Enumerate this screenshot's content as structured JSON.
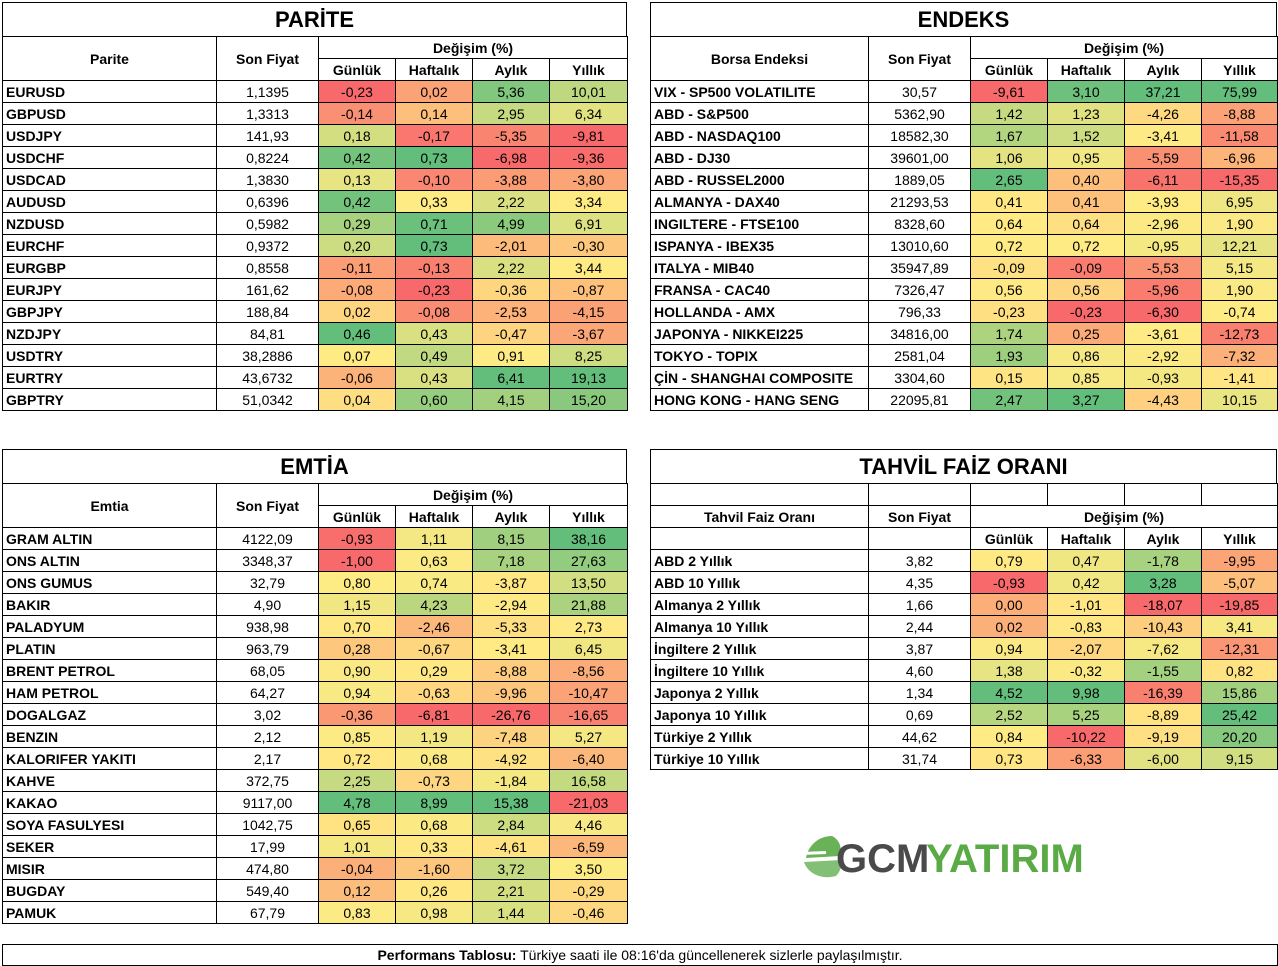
{
  "parite": {
    "title": "PARİTE",
    "head": {
      "name": "Parite",
      "price": "Son Fiyat",
      "change": "Değişim (%)",
      "d": "Günlük",
      "w": "Haftalık",
      "m": "Aylık",
      "y": "Yıllık"
    },
    "rows": [
      {
        "name": "EURUSD",
        "price": "1,1395",
        "d": "-0,23",
        "w": "0,02",
        "m": "5,36",
        "y": "10,01"
      },
      {
        "name": "GBPUSD",
        "price": "1,3313",
        "d": "-0,14",
        "w": "0,14",
        "m": "2,95",
        "y": "6,34"
      },
      {
        "name": "USDJPY",
        "price": "141,93",
        "d": "0,18",
        "w": "-0,17",
        "m": "-5,35",
        "y": "-9,81"
      },
      {
        "name": "USDCHF",
        "price": "0,8224",
        "d": "0,42",
        "w": "0,73",
        "m": "-6,98",
        "y": "-9,36"
      },
      {
        "name": "USDCAD",
        "price": "1,3830",
        "d": "0,13",
        "w": "-0,10",
        "m": "-3,88",
        "y": "-3,80"
      },
      {
        "name": "AUDUSD",
        "price": "0,6396",
        "d": "0,42",
        "w": "0,33",
        "m": "2,22",
        "y": "3,34"
      },
      {
        "name": "NZDUSD",
        "price": "0,5982",
        "d": "0,29",
        "w": "0,71",
        "m": "4,99",
        "y": "6,91"
      },
      {
        "name": "EURCHF",
        "price": "0,9372",
        "d": "0,20",
        "w": "0,73",
        "m": "-2,01",
        "y": "-0,30"
      },
      {
        "name": "EURGBP",
        "price": "0,8558",
        "d": "-0,11",
        "w": "-0,13",
        "m": "2,22",
        "y": "3,44"
      },
      {
        "name": "EURJPY",
        "price": "161,62",
        "d": "-0,08",
        "w": "-0,23",
        "m": "-0,36",
        "y": "-0,87"
      },
      {
        "name": "GBPJPY",
        "price": "188,84",
        "d": "0,02",
        "w": "-0,08",
        "m": "-2,53",
        "y": "-4,15"
      },
      {
        "name": "NZDJPY",
        "price": "84,81",
        "d": "0,46",
        "w": "0,43",
        "m": "-0,47",
        "y": "-3,67"
      },
      {
        "name": "USDTRY",
        "price": "38,2886",
        "d": "0,07",
        "w": "0,49",
        "m": "0,91",
        "y": "8,25"
      },
      {
        "name": "EURTRY",
        "price": "43,6732",
        "d": "-0,06",
        "w": "0,43",
        "m": "6,41",
        "y": "19,13"
      },
      {
        "name": "GBPTRY",
        "price": "51,0342",
        "d": "0,04",
        "w": "0,60",
        "m": "4,15",
        "y": "15,20"
      }
    ]
  },
  "endeks": {
    "title": "ENDEKS",
    "head": {
      "name": "Borsa Endeksi",
      "price": "Son Fiyat",
      "change": "Değişim (%)",
      "d": "Günlük",
      "w": "Haftalık",
      "m": "Aylık",
      "y": "Yıllık"
    },
    "rows": [
      {
        "name": "VIX  - SP500 VOLATILITE",
        "price": "30,57",
        "d": "-9,61",
        "w": "3,10",
        "m": "37,21",
        "y": "75,99"
      },
      {
        "name": "ABD - S&P500",
        "price": "5362,90",
        "d": "1,42",
        "w": "1,23",
        "m": "-4,26",
        "y": "-8,88"
      },
      {
        "name": "ABD - NASDAQ100",
        "price": "18582,30",
        "d": "1,67",
        "w": "1,52",
        "m": "-3,41",
        "y": "-11,58"
      },
      {
        "name": "ABD - DJ30",
        "price": "39601,00",
        "d": "1,06",
        "w": "0,95",
        "m": "-5,59",
        "y": "-6,96"
      },
      {
        "name": "ABD - RUSSEL2000",
        "price": "1889,05",
        "d": "2,65",
        "w": "0,40",
        "m": "-6,11",
        "y": "-15,35"
      },
      {
        "name": "ALMANYA - DAX40",
        "price": "21293,53",
        "d": "0,41",
        "w": "0,41",
        "m": "-3,93",
        "y": "6,95"
      },
      {
        "name": "INGILTERE - FTSE100",
        "price": "8328,60",
        "d": "0,64",
        "w": "0,64",
        "m": "-2,96",
        "y": "1,90"
      },
      {
        "name": "ISPANYA - IBEX35",
        "price": "13010,60",
        "d": "0,72",
        "w": "0,72",
        "m": "-0,95",
        "y": "12,21"
      },
      {
        "name": "ITALYA - MIB40",
        "price": "35947,89",
        "d": "-0,09",
        "w": "-0,09",
        "m": "-5,53",
        "y": "5,15"
      },
      {
        "name": "FRANSA - CAC40",
        "price": "7326,47",
        "d": "0,56",
        "w": "0,56",
        "m": "-5,96",
        "y": "1,90"
      },
      {
        "name": "HOLLANDA - AMX",
        "price": "796,33",
        "d": "-0,23",
        "w": "-0,23",
        "m": "-6,30",
        "y": "-0,74"
      },
      {
        "name": "JAPONYA - NIKKEI225",
        "price": "34816,00",
        "d": "1,74",
        "w": "0,25",
        "m": "-3,61",
        "y": "-12,73"
      },
      {
        "name": "TOKYO - TOPIX",
        "price": "2581,04",
        "d": "1,93",
        "w": "0,86",
        "m": "-2,92",
        "y": "-7,32"
      },
      {
        "name": "ÇİN - SHANGHAI COMPOSITE",
        "price": "3304,60",
        "d": "0,15",
        "w": "0,85",
        "m": "-0,93",
        "y": "-1,41"
      },
      {
        "name": "HONG KONG - HANG SENG",
        "price": "22095,81",
        "d": "2,47",
        "w": "3,27",
        "m": "-4,43",
        "y": "10,15"
      }
    ]
  },
  "emtia": {
    "title": "EMTİA",
    "head": {
      "name": "Emtia",
      "price": "Son Fiyat",
      "change": "Değişim (%)",
      "d": "Günlük",
      "w": "Haftalık",
      "m": "Aylık",
      "y": "Yıllık"
    },
    "rows": [
      {
        "name": "GRAM ALTIN",
        "price": "4122,09",
        "d": "-0,93",
        "w": "1,11",
        "m": "8,15",
        "y": "38,16"
      },
      {
        "name": "ONS ALTIN",
        "price": "3348,37",
        "d": "-1,00",
        "w": "0,63",
        "m": "7,18",
        "y": "27,63"
      },
      {
        "name": "ONS GUMUS",
        "price": "32,79",
        "d": "0,80",
        "w": "0,74",
        "m": "-3,87",
        "y": "13,50"
      },
      {
        "name": "BAKIR",
        "price": "4,90",
        "d": "1,15",
        "w": "4,23",
        "m": "-2,94",
        "y": "21,88"
      },
      {
        "name": "PALADYUM",
        "price": "938,98",
        "d": "0,70",
        "w": "-2,46",
        "m": "-5,33",
        "y": "2,73"
      },
      {
        "name": "PLATIN",
        "price": "963,79",
        "d": "0,28",
        "w": "-0,67",
        "m": "-3,41",
        "y": "6,45"
      },
      {
        "name": "BRENT PETROL",
        "price": "68,05",
        "d": "0,90",
        "w": "0,29",
        "m": "-8,88",
        "y": "-8,56"
      },
      {
        "name": "HAM PETROL",
        "price": "64,27",
        "d": "0,94",
        "w": "-0,63",
        "m": "-9,96",
        "y": "-10,47"
      },
      {
        "name": "DOGALGAZ",
        "price": "3,02",
        "d": "-0,36",
        "w": "-6,81",
        "m": "-26,76",
        "y": "-16,65"
      },
      {
        "name": "BENZIN",
        "price": "2,12",
        "d": "0,85",
        "w": "1,19",
        "m": "-7,48",
        "y": "5,27"
      },
      {
        "name": "KALORIFER YAKITI",
        "price": "2,17",
        "d": "0,72",
        "w": "0,68",
        "m": "-4,92",
        "y": "-6,40"
      },
      {
        "name": "KAHVE",
        "price": "372,75",
        "d": "2,25",
        "w": "-0,73",
        "m": "-1,84",
        "y": "16,58"
      },
      {
        "name": "KAKAO",
        "price": "9117,00",
        "d": "4,78",
        "w": "8,99",
        "m": "15,38",
        "y": "-21,03"
      },
      {
        "name": "SOYA FASULYESI",
        "price": "1042,75",
        "d": "0,65",
        "w": "0,68",
        "m": "2,84",
        "y": "4,46"
      },
      {
        "name": "SEKER",
        "price": "17,99",
        "d": "1,01",
        "w": "0,33",
        "m": "-4,61",
        "y": "-6,59"
      },
      {
        "name": "MISIR",
        "price": "474,80",
        "d": "-0,04",
        "w": "-1,60",
        "m": "3,72",
        "y": "3,50"
      },
      {
        "name": "BUGDAY",
        "price": "549,40",
        "d": "0,12",
        "w": "0,26",
        "m": "2,21",
        "y": "-0,29"
      },
      {
        "name": "PAMUK",
        "price": "67,79",
        "d": "0,83",
        "w": "0,98",
        "m": "1,44",
        "y": "-0,46"
      }
    ]
  },
  "tahvil": {
    "title": "TAHVİL FAİZ ORANI",
    "head": {
      "name": "Tahvil Faiz Oranı",
      "price": "Son Fiyat",
      "change": "Değişim (%)",
      "d": "Günlük",
      "w": "Haftalık",
      "m": "Aylık",
      "y": "Yıllık"
    },
    "rows": [
      {
        "name": "ABD 2 Yıllık",
        "price": "3,82",
        "d": "0,79",
        "w": "0,47",
        "m": "-1,78",
        "y": "-9,95"
      },
      {
        "name": "ABD 10 Yıllık",
        "price": "4,35",
        "d": "-0,93",
        "w": "0,42",
        "m": "3,28",
        "y": "-5,07"
      },
      {
        "name": "Almanya 2 Yıllık",
        "price": "1,66",
        "d": "0,00",
        "w": "-1,01",
        "m": "-18,07",
        "y": "-19,85"
      },
      {
        "name": "Almanya 10 Yıllık",
        "price": "2,44",
        "d": "0,02",
        "w": "-0,83",
        "m": "-10,43",
        "y": "3,41"
      },
      {
        "name": "İngiltere 2 Yıllık",
        "price": "3,87",
        "d": "0,94",
        "w": "-2,07",
        "m": "-7,62",
        "y": "-12,31"
      },
      {
        "name": "İngiltere 10 Yıllık",
        "price": "4,60",
        "d": "1,38",
        "w": "-0,32",
        "m": "-1,55",
        "y": "0,82"
      },
      {
        "name": "Japonya 2 Yıllık",
        "price": "1,34",
        "d": "4,52",
        "w": "9,98",
        "m": "-16,39",
        "y": "15,86"
      },
      {
        "name": "Japonya 10 Yıllık",
        "price": "0,69",
        "d": "2,52",
        "w": "5,25",
        "m": "-8,89",
        "y": "25,42"
      },
      {
        "name": "Türkiye 2 Yıllık",
        "price": "44,62",
        "d": "0,84",
        "w": "-10,22",
        "m": "-9,19",
        "y": "20,20"
      },
      {
        "name": "Türkiye 10 Yıllık",
        "price": "31,74",
        "d": "0,73",
        "w": "-6,33",
        "m": "-6,00",
        "y": "9,15"
      }
    ]
  },
  "logo": {
    "text_a": "GCM",
    "text_b": "YATIRIM",
    "color_a": "#4a4a4a",
    "color_b": "#5aaa46"
  },
  "footer": {
    "bold": "Performans Tablosu:",
    "text": " Türkiye saati ile 08:16'da güncellenerek sizlerle paylaşılmıştır."
  },
  "colors": {
    "red": "#f8696b",
    "yellow": "#ffeb84",
    "green": "#63be7b"
  }
}
